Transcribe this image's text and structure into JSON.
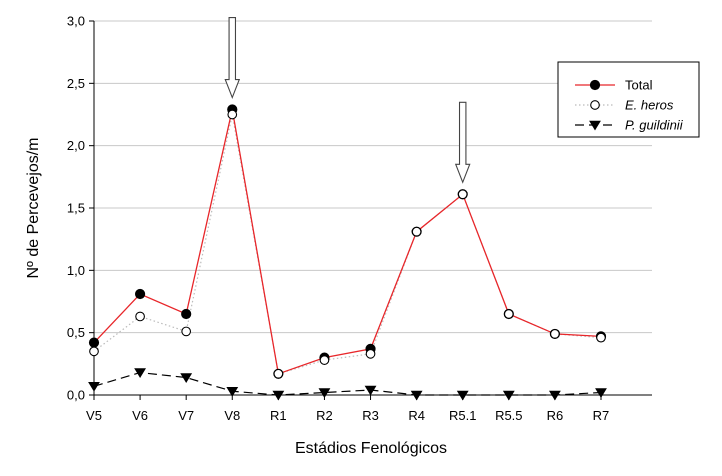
{
  "chart_data": {
    "type": "line",
    "categories": [
      "V5",
      "V6",
      "V7",
      "V8",
      "R1",
      "R2",
      "R3",
      "R4",
      "R5.1",
      "R5.5",
      "R6",
      "R7"
    ],
    "series": [
      {
        "name": "Total",
        "values": [
          0.42,
          0.81,
          0.65,
          2.29,
          0.17,
          0.3,
          0.37,
          1.31,
          1.61,
          0.65,
          0.49,
          0.47
        ],
        "color": "#e8262a",
        "line_style": "solid",
        "marker": "filled-circle"
      },
      {
        "name": "E. heros",
        "values": [
          0.35,
          0.63,
          0.51,
          2.25,
          0.17,
          0.28,
          0.33,
          1.31,
          1.61,
          0.65,
          0.49,
          0.46
        ],
        "color": "#bbbbbb",
        "line_style": "dotted",
        "marker": "open-circle"
      },
      {
        "name": "P. guildinii",
        "values": [
          0.07,
          0.18,
          0.14,
          0.03,
          0.0,
          0.02,
          0.04,
          0.0,
          0.0,
          0.0,
          0.0,
          0.02
        ],
        "color": "#000000",
        "line_style": "dashed",
        "marker": "filled-triangle-down"
      }
    ],
    "title": "",
    "xlabel": "Estádios Fenológicos",
    "ylabel": "Nº de Percevejos/m",
    "ylim": [
      0,
      3.0
    ],
    "yticks": [
      "0,0",
      "0,5",
      "1,0",
      "1,5",
      "2,0",
      "2,5",
      "3,0"
    ],
    "grid": "horizontal",
    "legend_position": "top-right",
    "arrow_annotations": [
      "V8",
      "R5.1"
    ]
  }
}
